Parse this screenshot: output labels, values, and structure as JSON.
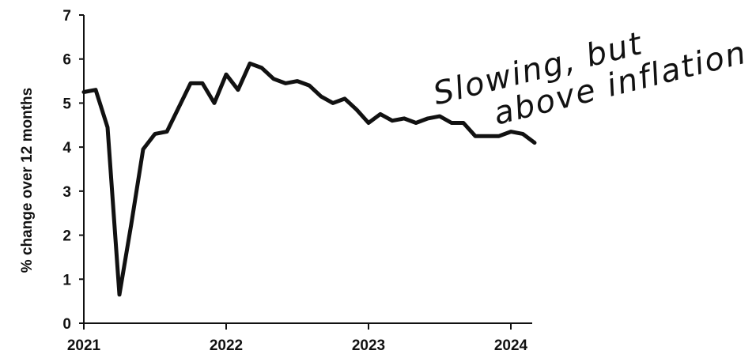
{
  "chart_data": {
    "type": "line",
    "title": "",
    "xlabel": "",
    "ylabel": "% change over 12 months",
    "ylim": [
      0,
      7
    ],
    "yticks": [
      "0",
      "1",
      "2",
      "3",
      "4",
      "5",
      "6",
      "7"
    ],
    "xticks": [
      "2021",
      "2022",
      "2023",
      "2024"
    ],
    "annotation_lines": [
      "Slowing, but",
      "above inflation"
    ],
    "line_color": "#111111",
    "grid": false,
    "series": [
      {
        "x": [
          "2021-01",
          "2021-02",
          "2021-03",
          "2021-04",
          "2021-05",
          "2021-06",
          "2021-07",
          "2021-08",
          "2021-09",
          "2021-10",
          "2021-11",
          "2021-12",
          "2022-01",
          "2022-02",
          "2022-03",
          "2022-04",
          "2022-05",
          "2022-06",
          "2022-07",
          "2022-08",
          "2022-09",
          "2022-10",
          "2022-11",
          "2022-12",
          "2023-01",
          "2023-02",
          "2023-03",
          "2023-04",
          "2023-05",
          "2023-06",
          "2023-07",
          "2023-08",
          "2023-09",
          "2023-10",
          "2023-11",
          "2023-12",
          "2024-01",
          "2024-02",
          "2024-03"
        ],
        "values": [
          5.25,
          5.3,
          4.45,
          0.65,
          2.25,
          3.95,
          4.3,
          4.35,
          4.9,
          5.45,
          5.45,
          5.0,
          5.65,
          5.3,
          5.9,
          5.8,
          5.55,
          5.45,
          5.5,
          5.4,
          5.15,
          5.0,
          5.1,
          4.85,
          4.55,
          4.75,
          4.6,
          4.65,
          4.55,
          4.65,
          4.7,
          4.55,
          4.55,
          4.25,
          4.25,
          4.25,
          4.35,
          4.3,
          4.1
        ]
      }
    ]
  }
}
